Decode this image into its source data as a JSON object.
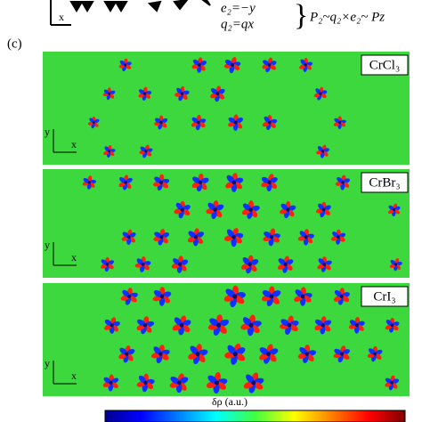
{
  "header": {
    "equations": [
      "e₂=−y",
      "q₂=qx"
    ],
    "relation": "P₂~q₂×e₂~ Pz"
  },
  "panel_label": "(c)",
  "panels": [
    {
      "label": "CrCl₃",
      "axis_y": "y",
      "axis_x": "x"
    },
    {
      "label": "CrBr₃",
      "axis_y": "y",
      "axis_x": "x"
    },
    {
      "label": "CrI₃",
      "axis_y": "y",
      "axis_x": "x"
    }
  ],
  "colorbar": {
    "label": "δρ (a.u.)"
  }
}
